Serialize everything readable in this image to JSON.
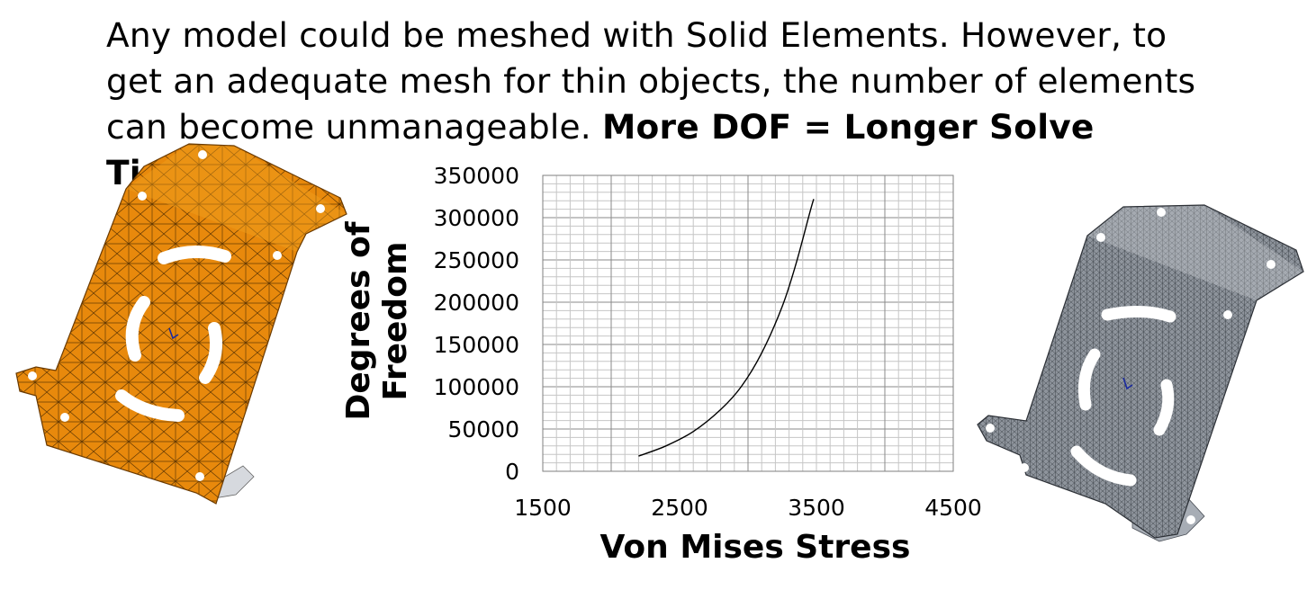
{
  "headline": {
    "line1": "Any model could be meshed with Solid Elements. However, to",
    "line2": "get an adequate mesh for thin objects, the number of elements",
    "line3_plain": "can become unmanageable.",
    "line3_bold": "More DOF = Longer Solve Time!"
  },
  "illustrations": {
    "left": {
      "icon": "coarse-mesh-bracket-icon",
      "color": "#E8890C"
    },
    "right": {
      "icon": "fine-mesh-bracket-icon",
      "color": "#8E949C"
    }
  },
  "chart_data": {
    "type": "line",
    "title": "",
    "xlabel": "Von Mises Stress",
    "ylabel": "Degrees of Freedom",
    "xlim": [
      1500,
      4500
    ],
    "ylim": [
      0,
      350000
    ],
    "xticks": [
      "1500",
      "2500",
      "3500",
      "4500"
    ],
    "yticks": [
      "0",
      "50000",
      "100000",
      "150000",
      "200000",
      "250000",
      "300000",
      "350000"
    ],
    "grid": true,
    "line_color": "#000000",
    "series": [
      {
        "x": [
          2200,
          2400,
          2600,
          2800,
          2950,
          3100,
          3250,
          3350,
          3450,
          3480
        ],
        "y": [
          18000,
          30000,
          47000,
          73000,
          100000,
          140000,
          195000,
          245000,
          305000,
          322000
        ]
      }
    ]
  }
}
